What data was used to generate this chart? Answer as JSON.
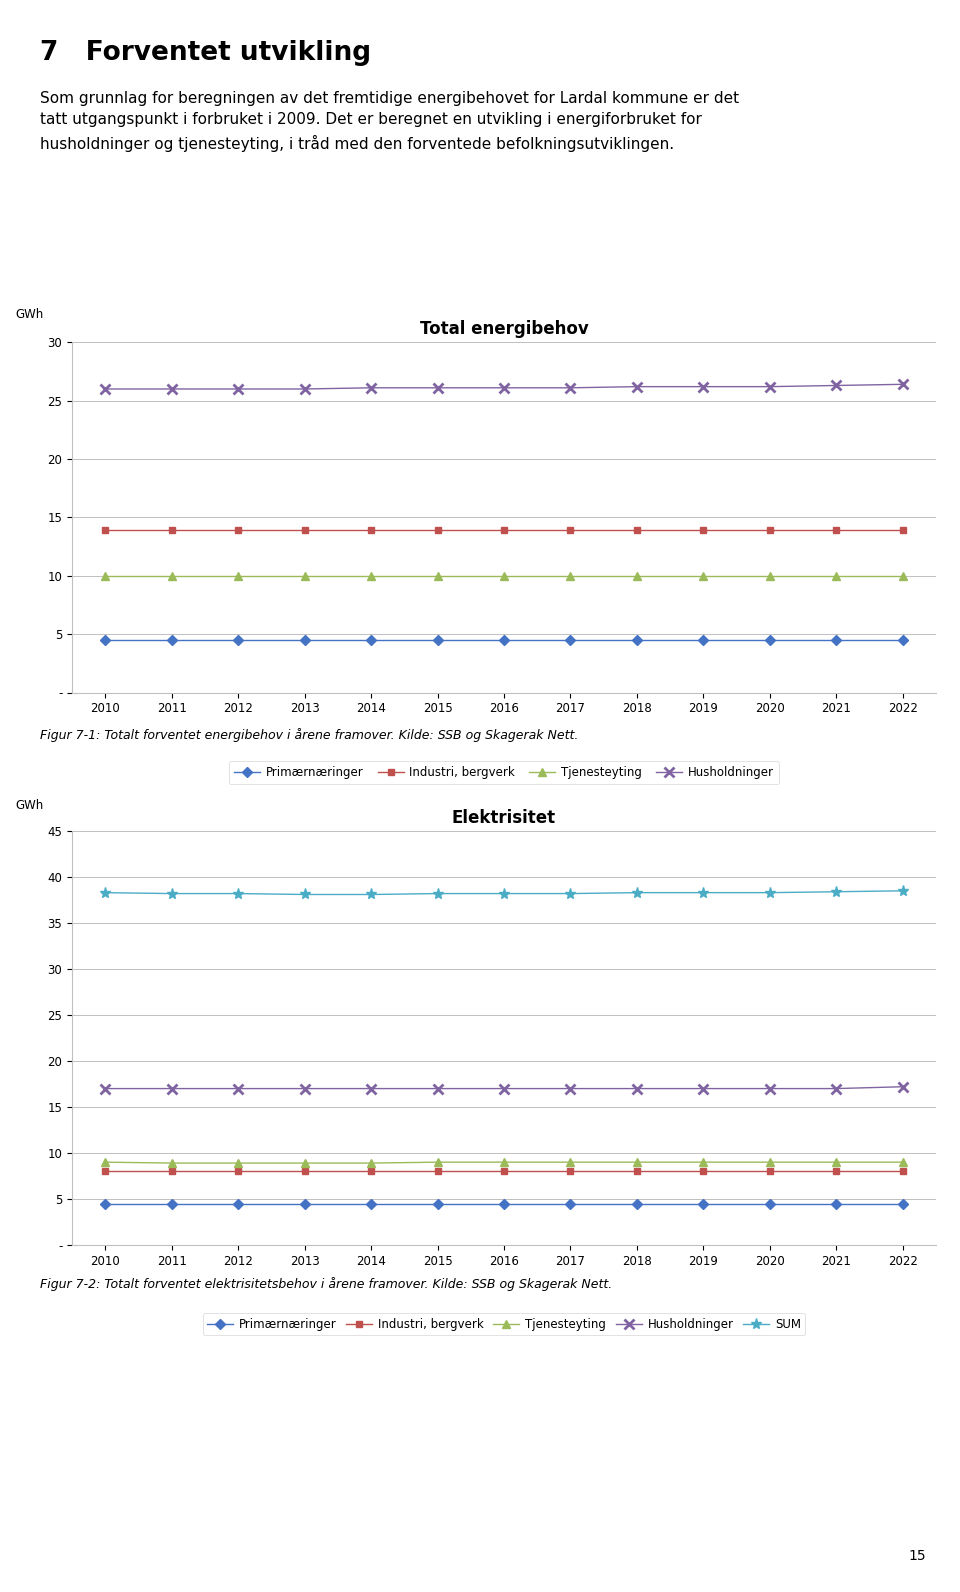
{
  "heading": "7   Forventet utvikling",
  "paragraph_line1": "Som grunnlag for beregningen av det fremtidige energibehovet for Lardal kommune er det",
  "paragraph_line2": "tatt utgangspunkt i forbruket i 2009. Det er beregnet en utvikling i energiforbruket for",
  "paragraph_line3": "husholdninger og tjenesteyting, i tråd med den forventede befolkningsutviklingen.",
  "years": [
    2010,
    2011,
    2012,
    2013,
    2014,
    2015,
    2016,
    2017,
    2018,
    2019,
    2020,
    2021,
    2022
  ],
  "chart1_title": "Total energibehov",
  "chart1_ylabel": "GWh",
  "chart1_ylim": [
    0,
    30
  ],
  "chart1_yticks": [
    0,
    5,
    10,
    15,
    20,
    25,
    30
  ],
  "chart1_ytick_labels": [
    "-",
    "5",
    "10",
    "15",
    "20",
    "25",
    "30"
  ],
  "chart1_series": {
    "Primærnæringer": {
      "values": [
        4.5,
        4.5,
        4.5,
        4.5,
        4.5,
        4.5,
        4.5,
        4.5,
        4.5,
        4.5,
        4.5,
        4.5,
        4.5
      ],
      "color": "#4472C4",
      "marker": "D",
      "markersize": 5
    },
    "Industri, bergverk": {
      "values": [
        13.9,
        13.9,
        13.9,
        13.9,
        13.9,
        13.9,
        13.9,
        13.9,
        13.9,
        13.9,
        13.9,
        13.9,
        13.9
      ],
      "color": "#C0504D",
      "marker": "s",
      "markersize": 5
    },
    "Tjenesteyting": {
      "values": [
        10.0,
        10.0,
        10.0,
        10.0,
        10.0,
        10.0,
        10.0,
        10.0,
        10.0,
        10.0,
        10.0,
        10.0,
        10.0
      ],
      "color": "#9BBB59",
      "marker": "^",
      "markersize": 6
    },
    "Husholdninger": {
      "values": [
        26.0,
        26.0,
        26.0,
        26.0,
        26.1,
        26.1,
        26.1,
        26.1,
        26.2,
        26.2,
        26.2,
        26.3,
        26.4
      ],
      "color": "#8064A2",
      "marker": "x",
      "markersize": 7,
      "markeredgewidth": 2
    }
  },
  "chart1_caption": "Figur 7-1: Totalt forventet energibehov i årene framover. Kilde: SSB og Skagerak Nett.",
  "chart2_title": "Elektrisitet",
  "chart2_ylabel": "GWh",
  "chart2_ylim": [
    0,
    45
  ],
  "chart2_yticks": [
    0,
    5,
    10,
    15,
    20,
    25,
    30,
    35,
    40,
    45
  ],
  "chart2_ytick_labels": [
    "-",
    "5",
    "10",
    "15",
    "20",
    "25",
    "30",
    "35",
    "40",
    "45"
  ],
  "chart2_series": {
    "Primærnæringer": {
      "values": [
        4.5,
        4.5,
        4.5,
        4.5,
        4.5,
        4.5,
        4.5,
        4.5,
        4.5,
        4.5,
        4.5,
        4.5,
        4.5
      ],
      "color": "#4472C4",
      "marker": "D",
      "markersize": 5
    },
    "Industri, bergverk": {
      "values": [
        8.0,
        8.0,
        8.0,
        8.0,
        8.0,
        8.0,
        8.0,
        8.0,
        8.0,
        8.0,
        8.0,
        8.0,
        8.0
      ],
      "color": "#C0504D",
      "marker": "s",
      "markersize": 5
    },
    "Tjenesteyting": {
      "values": [
        9.0,
        8.9,
        8.9,
        8.9,
        8.9,
        9.0,
        9.0,
        9.0,
        9.0,
        9.0,
        9.0,
        9.0,
        9.0
      ],
      "color": "#9BBB59",
      "marker": "^",
      "markersize": 6
    },
    "Husholdninger": {
      "values": [
        17.0,
        17.0,
        17.0,
        17.0,
        17.0,
        17.0,
        17.0,
        17.0,
        17.0,
        17.0,
        17.0,
        17.0,
        17.2
      ],
      "color": "#8064A2",
      "marker": "x",
      "markersize": 7,
      "markeredgewidth": 2
    },
    "SUM": {
      "values": [
        38.3,
        38.2,
        38.2,
        38.1,
        38.1,
        38.2,
        38.2,
        38.2,
        38.3,
        38.3,
        38.3,
        38.4,
        38.5
      ],
      "color": "#4BACC6",
      "marker": "*",
      "markersize": 8
    }
  },
  "chart2_caption": "Figur 7-2: Totalt forventet elektrisitetsbehov i årene framover. Kilde: SSB og Skagerak Nett.",
  "page_number": "15",
  "bg_color": "#ffffff",
  "grid_color": "#C0C0C0"
}
